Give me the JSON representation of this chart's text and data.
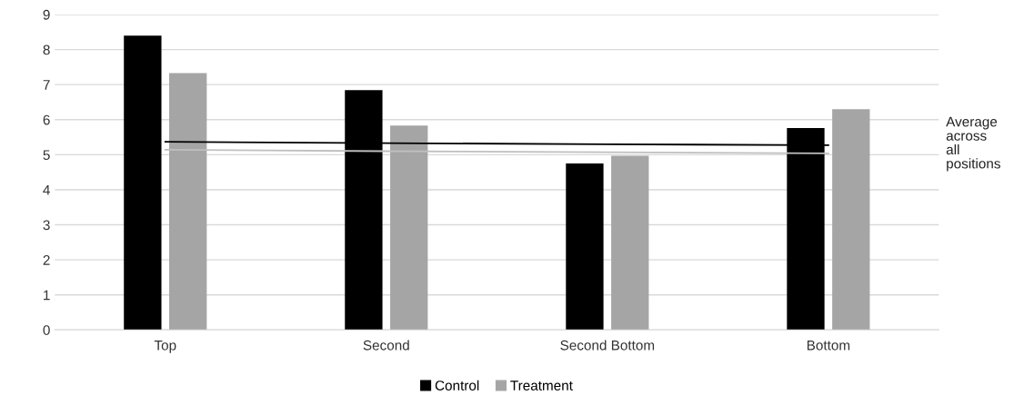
{
  "chart_data": {
    "type": "bar",
    "categories": [
      "Top",
      "Second",
      "Second Bottom",
      "Bottom"
    ],
    "series": [
      {
        "name": "Control",
        "color": "#000000",
        "values": [
          8.4,
          6.84,
          4.75,
          5.76
        ]
      },
      {
        "name": "Treatment",
        "color": "#a5a5a5",
        "values": [
          7.33,
          5.83,
          4.97,
          6.3
        ]
      },
      {
        "type": "line",
        "color": "#000000",
        "values": [
          5.37,
          5.33,
          5.3,
          5.27
        ]
      },
      {
        "type": "line",
        "color": "#bfbfbf",
        "values": [
          5.14,
          5.1,
          5.07,
          5.04
        ]
      }
    ],
    "annotations": [
      "Average across all positions"
    ],
    "ylim": [
      0,
      9
    ],
    "yticks": [
      0,
      1,
      2,
      3,
      4,
      5,
      6,
      7,
      8,
      9
    ],
    "grid": "y",
    "legend": "bottom"
  }
}
